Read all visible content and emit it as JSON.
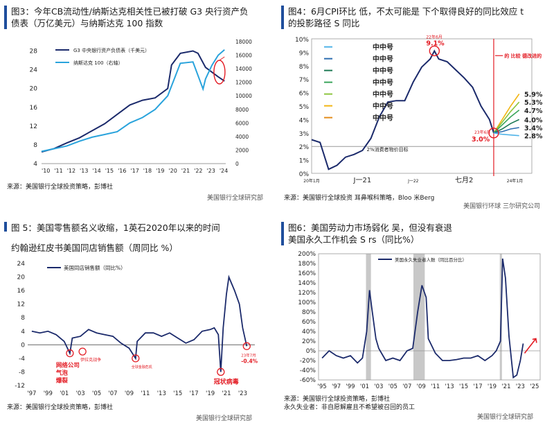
{
  "panels": [
    {
      "title_lines": [
        "图3：今年CB流动性/纳斯达克相关性已被打破 G3 央行资产负",
        "债表（万亿美元）与纳斯达克 100 指数"
      ],
      "source": "来源：美国银行全球投资策略，彭博社",
      "footer": "美国银行全球研究部"
    },
    {
      "title_lines": [
        "图4：6月CPI环比 低，不太可能是 下个取得良好的同比效应 t",
        "的投影路径                S                同比"
      ],
      "source": "来源：美国银行全球投资 耳鼻喉科策略，Bloo 米Berg",
      "footer": "美国银行环球 三尔研究公司"
    },
    {
      "title_lines": [
        "图 5：美国零售额名义收缩，1英石2020年以来的时间",
        "约翰逊红皮书美国同店销售额（周同比 %）"
      ],
      "source": "来源：美国银行全球投资策略，彭博社",
      "footer": "美国银行全球研究部"
    },
    {
      "title_lines": [
        "图6：美国劳动力市场弱化          吴，但没有衰退",
        "美国永久工作机会  S rs（同比%）"
      ],
      "source": "来源：美国银行全球投资策略，彭博社",
      "source2": "永久失业者：非自愿解雇且不希望被召回的员工",
      "footer": "美国银行全球研究部"
    }
  ],
  "chart_data": [
    {
      "type": "line",
      "title": "今年CB流动性/纳斯达克相关性已被打破 G3 央行资产负债表（万亿美元）与纳斯达克 100 指数",
      "x_ticks": [
        "'10",
        "'11",
        "'12",
        "'13",
        "'14",
        "'15",
        "'16",
        "'17",
        "'18",
        "'19",
        "'20",
        "'21",
        "'22",
        "'23",
        "'24"
      ],
      "x_range": [
        2010,
        2024.6
      ],
      "y_left": {
        "ticks": [
          4,
          8,
          12,
          16,
          20,
          24,
          28
        ],
        "range": [
          4,
          30
        ]
      },
      "y_right": {
        "ticks": [
          0,
          2000,
          4000,
          6000,
          8000,
          10000,
          12000,
          14000,
          16000,
          18000
        ],
        "range": [
          0,
          18000
        ]
      },
      "series": [
        {
          "name": "G3 中央银行资产负债表（千美元）",
          "axis": "left",
          "color": "#1b2a6b",
          "x": [
            2010,
            2011,
            2012,
            2013,
            2014,
            2015,
            2016,
            2017,
            2018,
            2019,
            2020,
            2020.3,
            2021,
            2022,
            2022.4,
            2023,
            2024,
            2024.5
          ],
          "y": [
            6.5,
            7.2,
            8.4,
            9.5,
            11,
            12.5,
            14.5,
            16.5,
            17.5,
            18,
            20,
            25,
            27.5,
            28,
            27.5,
            24.5,
            22.5,
            21.6
          ]
        },
        {
          "name": "纳斯达克 100（右轴）",
          "axis": "right",
          "color": "#29a3dc",
          "x": [
            2010,
            2011,
            2012,
            2013,
            2014,
            2015,
            2016,
            2017,
            2018,
            2019,
            2020,
            2021,
            2022,
            2022.8,
            2023,
            2023.5,
            2024,
            2024.5
          ],
          "y": [
            1800,
            2200,
            2600,
            3300,
            3900,
            4300,
            4700,
            6000,
            6800,
            8000,
            10000,
            14800,
            15000,
            11000,
            12500,
            14500,
            16000,
            16800
          ]
        }
      ],
      "annotation": "red circle around latest divergence"
    },
    {
      "type": "line",
      "title": "6月CPI环比低，不太可能是下个取得良好的同比效应的投影路径",
      "x_ticks": [
        "20年1月",
        "J一21",
        "J一22",
        "七月2",
        "24年1月"
      ],
      "y_ticks": [
        "0%",
        "1%",
        "2%",
        "3%",
        "4%",
        "5%",
        "6%",
        "7%",
        "8%",
        "9%",
        "10%"
      ],
      "y_range": [
        0,
        10
      ],
      "reference_line": {
        "y": 2,
        "label": "2%消费者物价目标"
      },
      "legend": [
        "中中号",
        "中中号",
        "中中号",
        "中中号",
        "中中号",
        "中中号",
        "中中号"
      ],
      "series": [
        {
          "name": "CPI",
          "color": "#1b2a6b",
          "x": [
            0,
            2,
            4,
            6,
            8,
            10,
            12,
            14,
            16,
            18,
            20,
            22,
            24,
            26,
            28,
            29,
            30,
            32,
            34,
            36,
            38,
            40,
            42,
            43
          ],
          "y": [
            2.5,
            2.3,
            0.3,
            0.6,
            1.2,
            1.4,
            1.7,
            2.6,
            4.2,
            5.3,
            5.4,
            5.4,
            6.8,
            7.9,
            8.5,
            9.1,
            8.5,
            8.3,
            7.7,
            7.1,
            6.4,
            5.0,
            4.0,
            3.0
          ]
        },
        {
          "name": "proj1",
          "color": "#f2b614",
          "x": [
            43,
            45,
            47,
            49
          ],
          "y": [
            3.0,
            4.0,
            5.0,
            5.9
          ]
        },
        {
          "name": "proj2",
          "color": "#8dc63f",
          "x": [
            43,
            45,
            47,
            49
          ],
          "y": [
            3.0,
            3.8,
            4.6,
            5.3
          ]
        },
        {
          "name": "proj3",
          "color": "#3aa55b",
          "x": [
            43,
            45,
            47,
            49
          ],
          "y": [
            3.0,
            3.6,
            4.2,
            4.7
          ]
        },
        {
          "name": "proj4",
          "color": "#1e7a55",
          "x": [
            43,
            45,
            47,
            49
          ],
          "y": [
            3.0,
            3.3,
            3.7,
            4.0
          ]
        },
        {
          "name": "proj5",
          "color": "#2b6cb0",
          "x": [
            43,
            45,
            47,
            49
          ],
          "y": [
            3.0,
            3.1,
            3.3,
            3.4
          ]
        },
        {
          "name": "proj6",
          "color": "#4fb3e8",
          "x": [
            43,
            45,
            47,
            49
          ],
          "y": [
            3.0,
            2.9,
            2.85,
            2.8
          ]
        }
      ],
      "x_range": [
        0,
        52
      ],
      "end_labels": [
        "5.9%",
        "5.3%",
        "4.7%",
        "4.0%",
        "3.4%",
        "2.8%"
      ],
      "annotations": [
        {
          "label_top": "22年6月",
          "label": "9.1%",
          "x": 29,
          "y": 9.1
        },
        {
          "label_top": "23年6月",
          "label": "3.0%",
          "x": 43,
          "y": 3.0
        },
        {
          "label": "的 比较 德改进的",
          "x": 49,
          "y": 8.7
        }
      ]
    },
    {
      "type": "line",
      "title": "约翰逊红皮书美国同店销售额（周同比 %）",
      "x_ticks": [
        "'97",
        "'99",
        "'01",
        "'03",
        "'05",
        "'07",
        "'09",
        "'11",
        "'13",
        "'15",
        "'17",
        "'19",
        "'21",
        "'23"
      ],
      "x_range": [
        1996.5,
        2024.5
      ],
      "y_ticks": [
        -12,
        -8,
        -4,
        0,
        4,
        8,
        12,
        16,
        20,
        24
      ],
      "y_range": [
        -12,
        24
      ],
      "series": [
        {
          "name": "美国同店销售额（同比%）",
          "color": "#1b2a6b",
          "x": [
            1997,
            1998,
            1999,
            2000,
            2001,
            2001.7,
            2002,
            2003,
            2004,
            2005,
            2006,
            2007,
            2008,
            2009,
            2009.8,
            2010,
            2011,
            2012,
            2013,
            2014,
            2015,
            2016,
            2017,
            2018,
            2019,
            2019.5,
            2020,
            2020.3,
            2020.6,
            2021,
            2021.3,
            2022,
            2022.6,
            2023,
            2023.5
          ],
          "y": [
            4,
            3.5,
            4,
            3,
            1,
            -2.5,
            2,
            2.5,
            4.5,
            3.5,
            3,
            2.5,
            0.5,
            -1,
            -4,
            1,
            3.5,
            3.5,
            2.5,
            3.5,
            2,
            0.5,
            1.5,
            4,
            4.5,
            5,
            3,
            -8,
            5,
            15,
            20,
            16,
            12,
            5,
            -0.4
          ]
        }
      ],
      "annotations": [
        {
          "label": "网络公司\n气泡\n爆裂",
          "x": 2001.7,
          "y": -2.5
        },
        {
          "label": "伊拉克战争",
          "x": 2003,
          "y": -2
        },
        {
          "label": "全球金融危机",
          "x": 2009.8,
          "y": -4
        },
        {
          "label": "冠状病毒",
          "x": 2020.3,
          "y": -8
        },
        {
          "label_top": "23年7月",
          "label": "-0.4%",
          "x": 2023.5,
          "y": -0.4
        }
      ]
    },
    {
      "type": "line",
      "title": "美国永久工作机会 S rs（同比%）",
      "x_ticks": [
        "'95",
        "'97",
        "'99",
        "'01",
        "'03",
        "'05",
        "'07",
        "'09",
        "'11",
        "'13",
        "'15",
        "'17",
        "'19",
        "'21",
        "'23",
        "'25"
      ],
      "x_range": [
        1994.5,
        2025.8
      ],
      "y_ticks": [
        "-60%",
        "-40%",
        "-20%",
        "0%",
        "20%",
        "40%",
        "60%",
        "80%",
        "100%",
        "120%",
        "140%",
        "160%",
        "180%",
        "200%"
      ],
      "y_range": [
        -60,
        200
      ],
      "recessions": [
        [
          2001.2,
          2001.9
        ],
        [
          2007.9,
          2009.5
        ],
        [
          2020.1,
          2020.4
        ]
      ],
      "series": [
        {
          "name": "美国永久失业者人数（同比百分比）",
          "color": "#1b2a6b",
          "x": [
            1995,
            1996,
            1997,
            1998,
            1999,
            2000,
            2000.7,
            2001.3,
            2001.7,
            2002,
            2002.6,
            2003,
            2003.6,
            2004,
            2005,
            2006,
            2007,
            2007.8,
            2008.5,
            2009.1,
            2009.7,
            2010,
            2011,
            2012,
            2013,
            2014,
            2015,
            2016,
            2017,
            2018,
            2019,
            2019.6,
            2020.2,
            2020.5,
            2020.9,
            2021.4,
            2022,
            2022.5,
            2023,
            2023.4
          ],
          "y": [
            -15,
            0,
            -10,
            -15,
            -10,
            -25,
            -15,
            40,
            125,
            90,
            25,
            5,
            -10,
            -20,
            -15,
            -20,
            0,
            5,
            80,
            135,
            110,
            25,
            -5,
            -20,
            -20,
            -18,
            -15,
            -15,
            -10,
            -20,
            -10,
            0,
            20,
            190,
            150,
            30,
            -55,
            -50,
            -20,
            15
          ]
        }
      ],
      "annotations": [
        {
          "label": "red upward arrow at latest point",
          "x": 2023.6,
          "y": 15
        }
      ]
    }
  ]
}
